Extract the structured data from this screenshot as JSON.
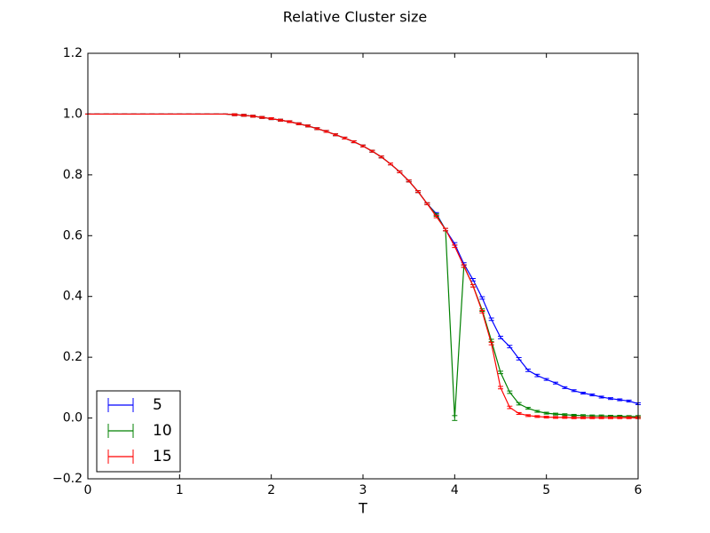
{
  "chart_data": {
    "type": "errorbar",
    "title": "Relative Cluster size",
    "xlabel": "T",
    "x": [
      0,
      0.1,
      0.2,
      0.3,
      0.4,
      0.5,
      0.6,
      0.7,
      0.8,
      0.9,
      1,
      1.1,
      1.2,
      1.3,
      1.4,
      1.5,
      1.6,
      1.7,
      1.8,
      1.9,
      2,
      2.1,
      2.2,
      2.3,
      2.4,
      2.5,
      2.6,
      2.7,
      2.8,
      2.9,
      3,
      3.1,
      3.2,
      3.3,
      3.4,
      3.5,
      3.6,
      3.7,
      3.8,
      3.9,
      4,
      4.1,
      4.2,
      4.3,
      4.4,
      4.5,
      4.6,
      4.7,
      4.8,
      4.9,
      5,
      5.1,
      5.2,
      5.3,
      5.4,
      5.5,
      5.6,
      5.7,
      5.8,
      5.9,
      6
    ],
    "series": [
      {
        "name": "5",
        "color": "#0000ff",
        "values": [
          1,
          1,
          1,
          1,
          1,
          1,
          1,
          1,
          1,
          1,
          1,
          1,
          1,
          1,
          1,
          1,
          0.998,
          0.996,
          0.993,
          0.989,
          0.985,
          0.98,
          0.975,
          0.968,
          0.961,
          0.952,
          0.943,
          0.932,
          0.921,
          0.909,
          0.895,
          0.878,
          0.859,
          0.836,
          0.81,
          0.78,
          0.745,
          0.705,
          0.672,
          0.62,
          0.573,
          0.507,
          0.455,
          0.395,
          0.325,
          0.265,
          0.235,
          0.195,
          0.157,
          0.14,
          0.127,
          0.115,
          0.1,
          0.09,
          0.082,
          0.076,
          0.069,
          0.064,
          0.06,
          0.056,
          0.047
        ],
        "errors": [
          0,
          0,
          0,
          0,
          0,
          0,
          0,
          0,
          0,
          0,
          0,
          0,
          0,
          0,
          0,
          0,
          0.003,
          0.003,
          0.003,
          0.003,
          0.003,
          0.003,
          0.003,
          0.003,
          0.003,
          0.003,
          0.003,
          0.003,
          0.003,
          0.003,
          0.003,
          0.003,
          0.003,
          0.003,
          0.003,
          0.003,
          0.003,
          0.003,
          0.004,
          0.004,
          0.004,
          0.004,
          0.004,
          0.004,
          0.004,
          0.004,
          0.004,
          0.004,
          0.004,
          0.004,
          0.003,
          0.003,
          0.003,
          0.003,
          0.003,
          0.003,
          0.003,
          0.003,
          0.003,
          0.003,
          0.003
        ]
      },
      {
        "name": "10",
        "color": "#008000",
        "values": [
          1,
          1,
          1,
          1,
          1,
          1,
          1,
          1,
          1,
          1,
          1,
          1,
          1,
          1,
          1,
          1,
          0.998,
          0.996,
          0.993,
          0.989,
          0.985,
          0.98,
          0.975,
          0.968,
          0.961,
          0.952,
          0.943,
          0.932,
          0.921,
          0.909,
          0.895,
          0.878,
          0.859,
          0.836,
          0.81,
          0.78,
          0.745,
          0.705,
          0.668,
          0.62,
          0,
          0.5,
          0.435,
          0.355,
          0.255,
          0.15,
          0.085,
          0.047,
          0.032,
          0.022,
          0.016,
          0.013,
          0.011,
          0.009,
          0.008,
          0.007,
          0.007,
          0.006,
          0.006,
          0.005,
          0.005
        ],
        "errors": [
          0,
          0,
          0,
          0,
          0,
          0,
          0,
          0,
          0,
          0,
          0,
          0,
          0,
          0,
          0,
          0,
          0.003,
          0.003,
          0.003,
          0.003,
          0.003,
          0.003,
          0.003,
          0.003,
          0.003,
          0.003,
          0.003,
          0.003,
          0.003,
          0.003,
          0.003,
          0.003,
          0.003,
          0.003,
          0.003,
          0.003,
          0.003,
          0.003,
          0.004,
          0.004,
          0.008,
          0.004,
          0.004,
          0.004,
          0.004,
          0.004,
          0.004,
          0.004,
          0.003,
          0.003,
          0.003,
          0.003,
          0.003,
          0.003,
          0.003,
          0.003,
          0.003,
          0.003,
          0.003,
          0.003,
          0.003
        ]
      },
      {
        "name": "15",
        "color": "#ff0000",
        "values": [
          1,
          1,
          1,
          1,
          1,
          1,
          1,
          1,
          1,
          1,
          1,
          1,
          1,
          1,
          1,
          1,
          0.998,
          0.996,
          0.993,
          0.989,
          0.985,
          0.98,
          0.975,
          0.968,
          0.961,
          0.952,
          0.943,
          0.932,
          0.921,
          0.909,
          0.895,
          0.878,
          0.859,
          0.836,
          0.81,
          0.78,
          0.745,
          0.705,
          0.663,
          0.62,
          0.565,
          0.5,
          0.435,
          0.35,
          0.245,
          0.1,
          0.035,
          0.015,
          0.008,
          0.005,
          0.003,
          0.002,
          0.002,
          0.001,
          0.001,
          0.001,
          0.001,
          0.001,
          0.001,
          0.001,
          0.001
        ],
        "errors": [
          0,
          0,
          0,
          0,
          0,
          0,
          0,
          0,
          0,
          0,
          0,
          0,
          0,
          0,
          0,
          0,
          0.003,
          0.003,
          0.003,
          0.003,
          0.003,
          0.003,
          0.003,
          0.003,
          0.003,
          0.003,
          0.003,
          0.003,
          0.003,
          0.003,
          0.003,
          0.003,
          0.003,
          0.003,
          0.003,
          0.003,
          0.003,
          0.003,
          0.004,
          0.004,
          0.004,
          0.004,
          0.004,
          0.004,
          0.004,
          0.004,
          0.004,
          0.003,
          0.003,
          0.003,
          0.003,
          0.003,
          0.003,
          0.003,
          0.003,
          0.003,
          0.003,
          0.003,
          0.003,
          0.003,
          0.003
        ]
      }
    ],
    "xlim": [
      0,
      6
    ],
    "xticks": [
      0,
      1,
      2,
      3,
      4,
      5,
      6
    ],
    "ylim": [
      -0.2,
      1.2
    ],
    "yticks": [
      {
        "value": -0.2,
        "label": "−0.2"
      },
      {
        "value": 0,
        "label": "0.0"
      },
      0.2,
      0.4,
      0.6,
      0.8,
      {
        "value": 1,
        "label": "1.0"
      },
      1.2
    ],
    "legend": "lower left"
  }
}
